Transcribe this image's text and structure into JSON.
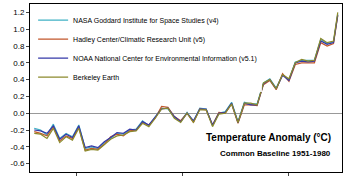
{
  "chart_data": {
    "type": "line",
    "title": "Temperature Anomaly (°C)",
    "subtitle": "Common Baseline 1951-1980",
    "x": [
      1880,
      1883,
      1886,
      1889,
      1892,
      1895,
      1898,
      1901,
      1904,
      1907,
      1910,
      1913,
      1916,
      1919,
      1922,
      1925,
      1928,
      1931,
      1934,
      1937,
      1940,
      1943,
      1946,
      1949,
      1952,
      1955,
      1958,
      1961,
      1964,
      1967,
      1970,
      1973,
      1976,
      1979,
      1982,
      1985,
      1988,
      1991,
      1994,
      1997,
      2000,
      2003,
      2006,
      2009,
      2012,
      2015,
      2018,
      2021,
      2023
    ],
    "series": [
      {
        "name": "NASA Goddard Institute for Space Studies (v4)",
        "color": "#3fb1c4",
        "values": [
          -0.18,
          -0.2,
          -0.26,
          -0.13,
          -0.3,
          -0.24,
          -0.28,
          -0.14,
          -0.42,
          -0.4,
          -0.42,
          -0.35,
          -0.3,
          -0.24,
          -0.25,
          -0.2,
          -0.19,
          -0.09,
          -0.15,
          -0.04,
          0.06,
          0.05,
          -0.05,
          -0.1,
          0.01,
          -0.1,
          0.06,
          0.05,
          -0.15,
          0.0,
          0.02,
          0.13,
          -0.1,
          0.13,
          0.11,
          0.11,
          0.36,
          0.41,
          0.3,
          0.46,
          0.4,
          0.61,
          0.63,
          0.63,
          0.63,
          0.88,
          0.83,
          0.85,
          1.18
        ]
      },
      {
        "name": "Hadley Center/Climatic Research Unit (v5)",
        "color": "#c2562b",
        "values": [
          -0.22,
          -0.24,
          -0.27,
          -0.16,
          -0.33,
          -0.27,
          -0.3,
          -0.17,
          -0.44,
          -0.42,
          -0.43,
          -0.37,
          -0.28,
          -0.25,
          -0.27,
          -0.21,
          -0.2,
          -0.11,
          -0.14,
          -0.06,
          0.08,
          0.07,
          -0.04,
          -0.09,
          0.0,
          -0.11,
          0.05,
          0.04,
          -0.14,
          0.01,
          0.0,
          0.11,
          -0.12,
          0.1,
          0.1,
          0.09,
          0.34,
          0.39,
          0.28,
          0.47,
          0.38,
          0.58,
          0.6,
          0.6,
          0.6,
          0.84,
          0.8,
          0.83,
          1.16
        ]
      },
      {
        "name": "NOAA National Center for Environmental Information (v5.1)",
        "color": "#3438a8",
        "values": [
          -0.2,
          -0.21,
          -0.24,
          -0.15,
          -0.31,
          -0.25,
          -0.29,
          -0.15,
          -0.41,
          -0.39,
          -0.41,
          -0.34,
          -0.29,
          -0.23,
          -0.24,
          -0.19,
          -0.2,
          -0.1,
          -0.14,
          -0.05,
          0.05,
          0.06,
          -0.04,
          -0.1,
          0.0,
          -0.09,
          0.05,
          0.05,
          -0.14,
          0.0,
          0.01,
          0.12,
          -0.11,
          0.12,
          0.1,
          0.1,
          0.35,
          0.4,
          0.29,
          0.45,
          0.39,
          0.6,
          0.62,
          0.61,
          0.62,
          0.86,
          0.82,
          0.84,
          1.17
        ]
      },
      {
        "name": "Berkeley Earth",
        "color": "#8c8a2c",
        "values": [
          -0.24,
          -0.25,
          -0.3,
          -0.18,
          -0.35,
          -0.28,
          -0.32,
          -0.18,
          -0.45,
          -0.43,
          -0.44,
          -0.38,
          -0.31,
          -0.27,
          -0.26,
          -0.22,
          -0.21,
          -0.12,
          -0.16,
          -0.06,
          0.05,
          0.06,
          -0.06,
          -0.11,
          0.0,
          -0.11,
          0.04,
          0.04,
          -0.16,
          -0.01,
          0.0,
          0.11,
          -0.11,
          0.12,
          0.12,
          0.1,
          0.36,
          0.4,
          0.29,
          0.46,
          0.41,
          0.6,
          0.64,
          0.62,
          0.63,
          0.89,
          0.84,
          0.86,
          1.2
        ]
      }
    ],
    "xlim": [
      1878,
      2025
    ],
    "ylim": [
      -0.7,
      1.3
    ],
    "yticks": [
      -0.6,
      -0.4,
      -0.2,
      {
        "value": 0,
        "label": "0.0"
      },
      0.2,
      0.4,
      0.6,
      0.8,
      {
        "value": 1,
        "label": "1.0"
      },
      1.2
    ],
    "grid": false,
    "legend": "upper left",
    "tick_labels": "y"
  }
}
